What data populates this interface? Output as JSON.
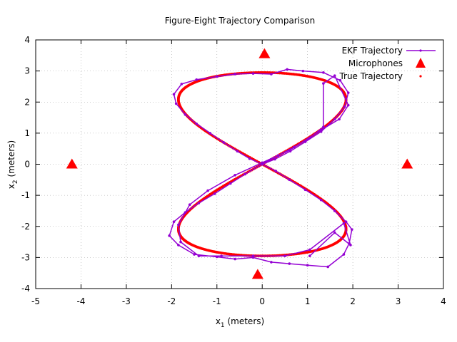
{
  "chart_data": {
    "type": "scatter",
    "title": "Figure-Eight Trajectory Comparison",
    "xlabel": {
      "base": "x",
      "sub": "1",
      "rest": " (meters)"
    },
    "ylabel": {
      "base": "x",
      "sub": "2",
      "rest": " (meters)"
    },
    "xlim": [
      -5,
      4
    ],
    "ylim": [
      -4,
      4
    ],
    "xticks": [
      -5,
      -4,
      -3,
      -2,
      -1,
      0,
      1,
      2,
      3,
      4
    ],
    "yticks": [
      -4,
      -3,
      -2,
      -1,
      0,
      1,
      2,
      3,
      4
    ],
    "grid": true,
    "legend_position": "top-right",
    "colors": {
      "ekf": "#9400d3",
      "true": "#ff0000",
      "mic": "#ff0000"
    },
    "series": [
      {
        "name": "EKF Trajectory",
        "style": "linespoints",
        "points": [
          [
            0.0,
            0.0
          ],
          [
            0.28,
            0.16
          ],
          [
            0.62,
            0.42
          ],
          [
            0.95,
            0.72
          ],
          [
            1.3,
            1.05
          ],
          [
            1.6,
            1.45
          ],
          [
            1.82,
            1.85
          ],
          [
            1.9,
            2.3
          ],
          [
            1.72,
            2.7
          ],
          [
            1.35,
            2.95
          ],
          [
            0.9,
            3.0
          ],
          [
            0.55,
            3.05
          ],
          [
            0.2,
            2.9
          ],
          [
            -0.2,
            2.92
          ],
          [
            -0.6,
            2.9
          ],
          [
            -1.0,
            2.82
          ],
          [
            -1.45,
            2.72
          ],
          [
            -1.78,
            2.58
          ],
          [
            -1.95,
            2.25
          ],
          [
            -1.9,
            1.95
          ],
          [
            -1.7,
            1.6
          ],
          [
            -1.45,
            1.3
          ],
          [
            -1.15,
            1.0
          ],
          [
            -0.85,
            0.7
          ],
          [
            -0.55,
            0.42
          ],
          [
            -0.28,
            0.18
          ],
          [
            0.0,
            0.0
          ],
          [
            0.3,
            -0.22
          ],
          [
            0.6,
            -0.5
          ],
          [
            0.95,
            -0.82
          ],
          [
            1.3,
            -1.15
          ],
          [
            1.6,
            -1.5
          ],
          [
            1.85,
            -1.85
          ],
          [
            1.98,
            -2.1
          ],
          [
            1.92,
            -2.55
          ],
          [
            1.8,
            -2.9
          ],
          [
            1.45,
            -3.3
          ],
          [
            1.0,
            -3.25
          ],
          [
            0.6,
            -3.2
          ],
          [
            0.2,
            -3.15
          ],
          [
            -0.2,
            -3.0
          ],
          [
            -0.6,
            -3.05
          ],
          [
            -1.0,
            -2.98
          ],
          [
            -1.5,
            -2.9
          ],
          [
            -1.85,
            -2.6
          ],
          [
            -2.05,
            -2.3
          ],
          [
            -1.95,
            -1.85
          ],
          [
            -1.7,
            -1.55
          ],
          [
            -1.4,
            -1.25
          ],
          [
            -1.05,
            -0.95
          ],
          [
            -0.7,
            -0.62
          ],
          [
            -0.38,
            -0.32
          ],
          [
            0.0,
            0.0
          ],
          [
            0.35,
            0.28
          ],
          [
            0.7,
            0.55
          ],
          [
            1.05,
            0.85
          ],
          [
            1.35,
            1.2
          ],
          [
            1.35,
            2.6
          ],
          [
            1.6,
            2.85
          ],
          [
            1.9,
            1.9
          ],
          [
            1.7,
            1.45
          ],
          [
            1.3,
            1.1
          ],
          [
            0.6,
            0.45
          ],
          [
            0.0,
            0.05
          ],
          [
            -0.6,
            -0.35
          ],
          [
            -1.2,
            -0.85
          ],
          [
            -1.6,
            -1.3
          ],
          [
            -1.85,
            -1.95
          ],
          [
            -1.8,
            -2.5
          ],
          [
            -1.4,
            -2.95
          ],
          [
            -0.9,
            -2.95
          ],
          [
            -0.2,
            -2.95
          ],
          [
            0.5,
            -2.95
          ],
          [
            1.05,
            -2.75
          ],
          [
            1.8,
            -1.9
          ],
          [
            1.95,
            -2.6
          ],
          [
            1.6,
            -2.2
          ],
          [
            1.05,
            -2.95
          ]
        ]
      },
      {
        "name": "Microphones",
        "style": "points",
        "points": [
          [
            0.05,
            3.55
          ],
          [
            -4.2,
            0.0
          ],
          [
            3.2,
            0.0
          ],
          [
            -0.1,
            -3.55
          ]
        ]
      },
      {
        "name": "True Trajectory",
        "style": "points",
        "curve": "lissajous",
        "amplitude_x": 1.85,
        "amplitude_y": 2.95
      }
    ]
  }
}
